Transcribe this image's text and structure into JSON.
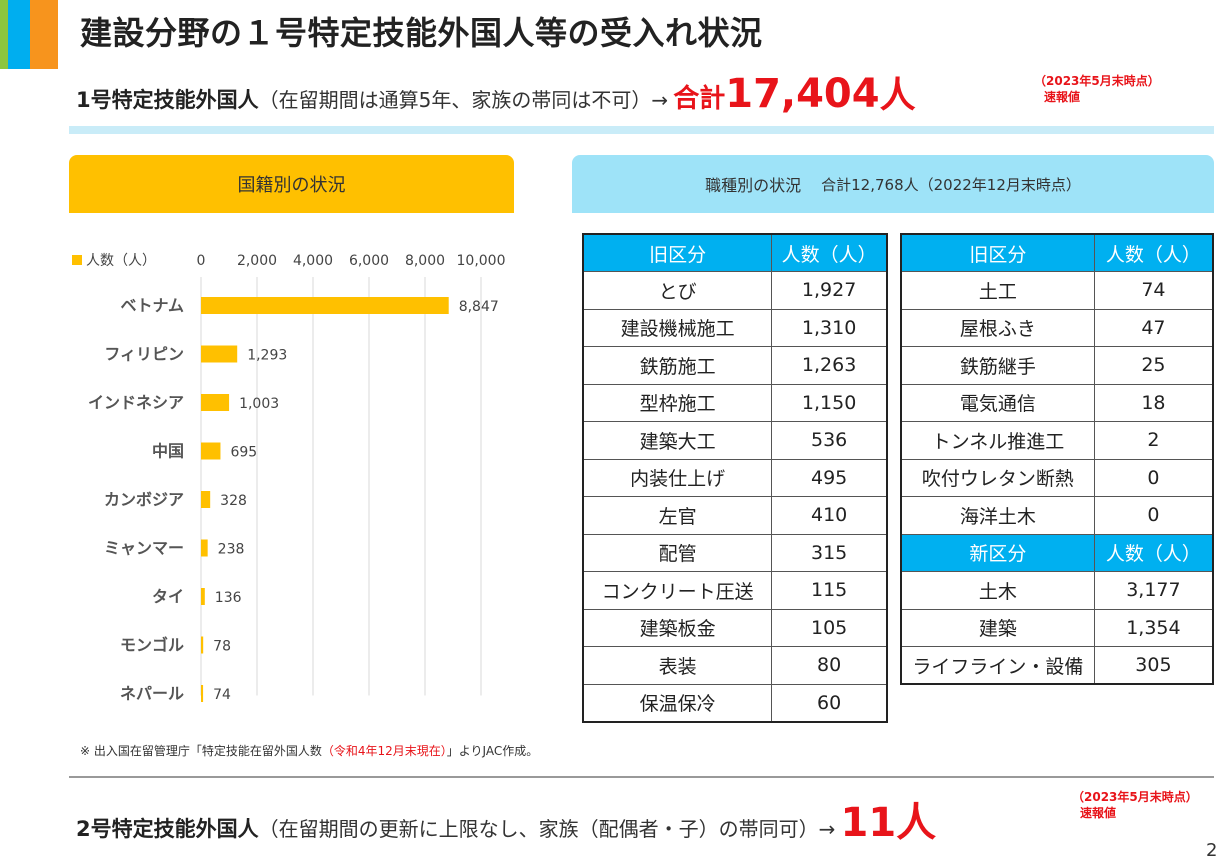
{
  "header": {
    "title": "建設分野の１号特定技能外国人等の受入れ状況",
    "colors": [
      "#8dc63f",
      "#00aeef",
      "#f7941d"
    ]
  },
  "type1": {
    "lead": "1号特定技能外国人",
    "paren": "（在留期間は通算5年、家族の帯同は不可）",
    "arrow": "→",
    "sum_label": "合計",
    "sum_value": "17,404",
    "sum_unit": "人",
    "note_date": "（2023年5月末時点）",
    "note_flag": "速報値"
  },
  "nationality_panel": {
    "title": "国籍別の状況"
  },
  "occupation_panel": {
    "title": "職種別の状況",
    "subtitle": "合計12,768人（2022年12月末時点）"
  },
  "chart_data": {
    "type": "bar",
    "orientation": "horizontal",
    "legend": "人数（人）",
    "legend_position": "top-left",
    "categories": [
      "ベトナム",
      "フィリピン",
      "インドネシア",
      "中国",
      "カンボジア",
      "ミャンマー",
      "タイ",
      "モンゴル",
      "ネパール"
    ],
    "values": [
      8847,
      1293,
      1003,
      695,
      328,
      238,
      136,
      78,
      74
    ],
    "value_labels": [
      "8,847",
      "1,293",
      "1,003",
      "695",
      "328",
      "238",
      "136",
      "78",
      "74"
    ],
    "xlim": [
      0,
      10000
    ],
    "ticks": [
      "0",
      "2,000",
      "4,000",
      "6,000",
      "8,000",
      "10,000"
    ],
    "tick_values": [
      0,
      2000,
      4000,
      6000,
      8000,
      10000
    ],
    "grid": true,
    "bar_color": "#ffc000"
  },
  "old_table_left": {
    "headers": [
      "旧区分",
      "人数（人）"
    ],
    "rows": [
      [
        "とび",
        "1,927"
      ],
      [
        "建設機械施工",
        "1,310"
      ],
      [
        "鉄筋施工",
        "1,263"
      ],
      [
        "型枠施工",
        "1,150"
      ],
      [
        "建築大工",
        "536"
      ],
      [
        "内装仕上げ",
        "495"
      ],
      [
        "左官",
        "410"
      ],
      [
        "配管",
        "315"
      ],
      [
        "コンクリート圧送",
        "115"
      ],
      [
        "建築板金",
        "105"
      ],
      [
        "表装",
        "80"
      ],
      [
        "保温保冷",
        "60"
      ]
    ]
  },
  "old_table_right": {
    "headers": [
      "旧区分",
      "人数（人）"
    ],
    "rows": [
      [
        "土工",
        "74"
      ],
      [
        "屋根ふき",
        "47"
      ],
      [
        "鉄筋継手",
        "25"
      ],
      [
        "電気通信",
        "18"
      ],
      [
        "トンネル推進工",
        "2"
      ],
      [
        "吹付ウレタン断熱",
        "0"
      ],
      [
        "海洋土木",
        "0"
      ]
    ],
    "new_headers": [
      "新区分",
      "人数（人）"
    ],
    "new_rows": [
      [
        "土木",
        "3,177"
      ],
      [
        "建築",
        "1,354"
      ],
      [
        "ライフライン・設備",
        "305"
      ]
    ]
  },
  "source": {
    "prefix": "※ 出入国在留管理庁「特定技能在留外国人数",
    "red": "（令和4年12月末現在）",
    "suffix": "」よりJAC作成。"
  },
  "type2": {
    "lead": "2号特定技能外国人",
    "paren": "（在留期間の更新に上限なし、家族（配偶者・子）の帯同可）",
    "arrow": "→",
    "value": "11人",
    "note_date": "（2023年5月末時点）",
    "note_flag": "速報値"
  },
  "page_number": "2"
}
